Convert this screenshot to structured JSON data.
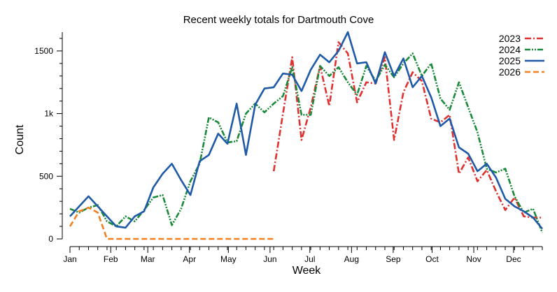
{
  "chart_data": {
    "type": "line",
    "title": "Recent weekly totals for Dartmouth Cove",
    "xlabel": "Week",
    "ylabel": "Count",
    "xlim": [
      1,
      52
    ],
    "ylim": [
      0,
      1650
    ],
    "yticks": [
      {
        "value": 0,
        "label": "0"
      },
      {
        "value": 500,
        "label": "500"
      },
      {
        "value": 1000,
        "label": "1k"
      },
      {
        "value": 1500,
        "label": "1500"
      }
    ],
    "xticks": [
      {
        "value": 1,
        "label": "Jan"
      },
      {
        "value": 5.4,
        "label": "Feb"
      },
      {
        "value": 9.4,
        "label": "Mar"
      },
      {
        "value": 13.9,
        "label": "Apr"
      },
      {
        "value": 18.1,
        "label": "May"
      },
      {
        "value": 22.6,
        "label": "Jun"
      },
      {
        "value": 26.9,
        "label": "Jul"
      },
      {
        "value": 31.4,
        "label": "Aug"
      },
      {
        "value": 35.9,
        "label": "Sep"
      },
      {
        "value": 40.1,
        "label": "Oct"
      },
      {
        "value": 44.6,
        "label": "Nov"
      },
      {
        "value": 48.9,
        "label": "Dec"
      }
    ],
    "legend_position": "top-right",
    "grid": false,
    "series": [
      {
        "name": "2023",
        "color": "#e03030",
        "dash": "dashdot",
        "x": [
          23,
          24,
          25,
          26,
          27,
          28,
          29,
          30,
          31,
          32,
          33,
          34,
          35,
          36,
          37,
          38,
          39,
          40,
          41,
          42,
          43,
          44,
          45,
          46,
          47,
          48,
          49,
          50,
          51,
          52
        ],
        "values": [
          540,
          1000,
          1450,
          790,
          1050,
          1380,
          1060,
          1570,
          1480,
          1090,
          1250,
          1240,
          1450,
          790,
          1170,
          1330,
          1260,
          960,
          930,
          990,
          520,
          650,
          460,
          550,
          380,
          230,
          330,
          180,
          170,
          170
        ]
      },
      {
        "name": "2024",
        "color": "#1a8a3a",
        "dash": "dashdotdot",
        "x": [
          1,
          2,
          3,
          4,
          5,
          6,
          7,
          8,
          9,
          10,
          11,
          12,
          13,
          14,
          15,
          16,
          17,
          18,
          19,
          20,
          21,
          22,
          23,
          24,
          25,
          26,
          27,
          28,
          29,
          30,
          31,
          32,
          33,
          34,
          35,
          36,
          37,
          38,
          39,
          40,
          41,
          42,
          43,
          44,
          45,
          46,
          47,
          48,
          49,
          50,
          51,
          52
        ],
        "values": [
          240,
          210,
          250,
          270,
          140,
          100,
          180,
          140,
          230,
          330,
          350,
          110,
          240,
          460,
          600,
          970,
          930,
          770,
          780,
          1000,
          1080,
          1010,
          1080,
          1140,
          1370,
          990,
          990,
          1380,
          1300,
          1370,
          1250,
          1150,
          1380,
          1260,
          1390,
          1290,
          1400,
          1480,
          1300,
          1400,
          1120,
          1030,
          1250,
          1050,
          850,
          560,
          530,
          560,
          340,
          210,
          240,
          50
        ]
      },
      {
        "name": "2025",
        "color": "#1f5aa8",
        "dash": "solid",
        "x": [
          1,
          2,
          3,
          4,
          5,
          6,
          7,
          8,
          9,
          10,
          11,
          12,
          13,
          14,
          15,
          16,
          17,
          18,
          19,
          20,
          21,
          22,
          23,
          24,
          25,
          26,
          27,
          28,
          29,
          30,
          31,
          32,
          33,
          34,
          35,
          36,
          37,
          38,
          39,
          40,
          41,
          42,
          43,
          44,
          45,
          46,
          47,
          48,
          49,
          50,
          51,
          52
        ],
        "values": [
          180,
          260,
          340,
          260,
          180,
          100,
          90,
          180,
          220,
          410,
          520,
          600,
          470,
          350,
          620,
          670,
          840,
          760,
          1080,
          670,
          1070,
          1200,
          1210,
          1320,
          1310,
          1180,
          1350,
          1470,
          1410,
          1500,
          1650,
          1400,
          1410,
          1240,
          1490,
          1300,
          1440,
          1210,
          1300,
          1130,
          900,
          960,
          730,
          680,
          540,
          600,
          490,
          320,
          260,
          220,
          170,
          80
        ]
      },
      {
        "name": "2026",
        "color": "#f08020",
        "dash": "dashed",
        "x": [
          1,
          2,
          3,
          4,
          5,
          6,
          7,
          8,
          9,
          10,
          11,
          12,
          13,
          14,
          15,
          16,
          17,
          18,
          19,
          20,
          21,
          22,
          23
        ],
        "values": [
          100,
          220,
          250,
          210,
          0,
          0,
          0,
          0,
          0,
          0,
          0,
          0,
          0,
          0,
          0,
          0,
          0,
          0,
          0,
          0,
          0,
          0,
          0
        ]
      }
    ]
  }
}
